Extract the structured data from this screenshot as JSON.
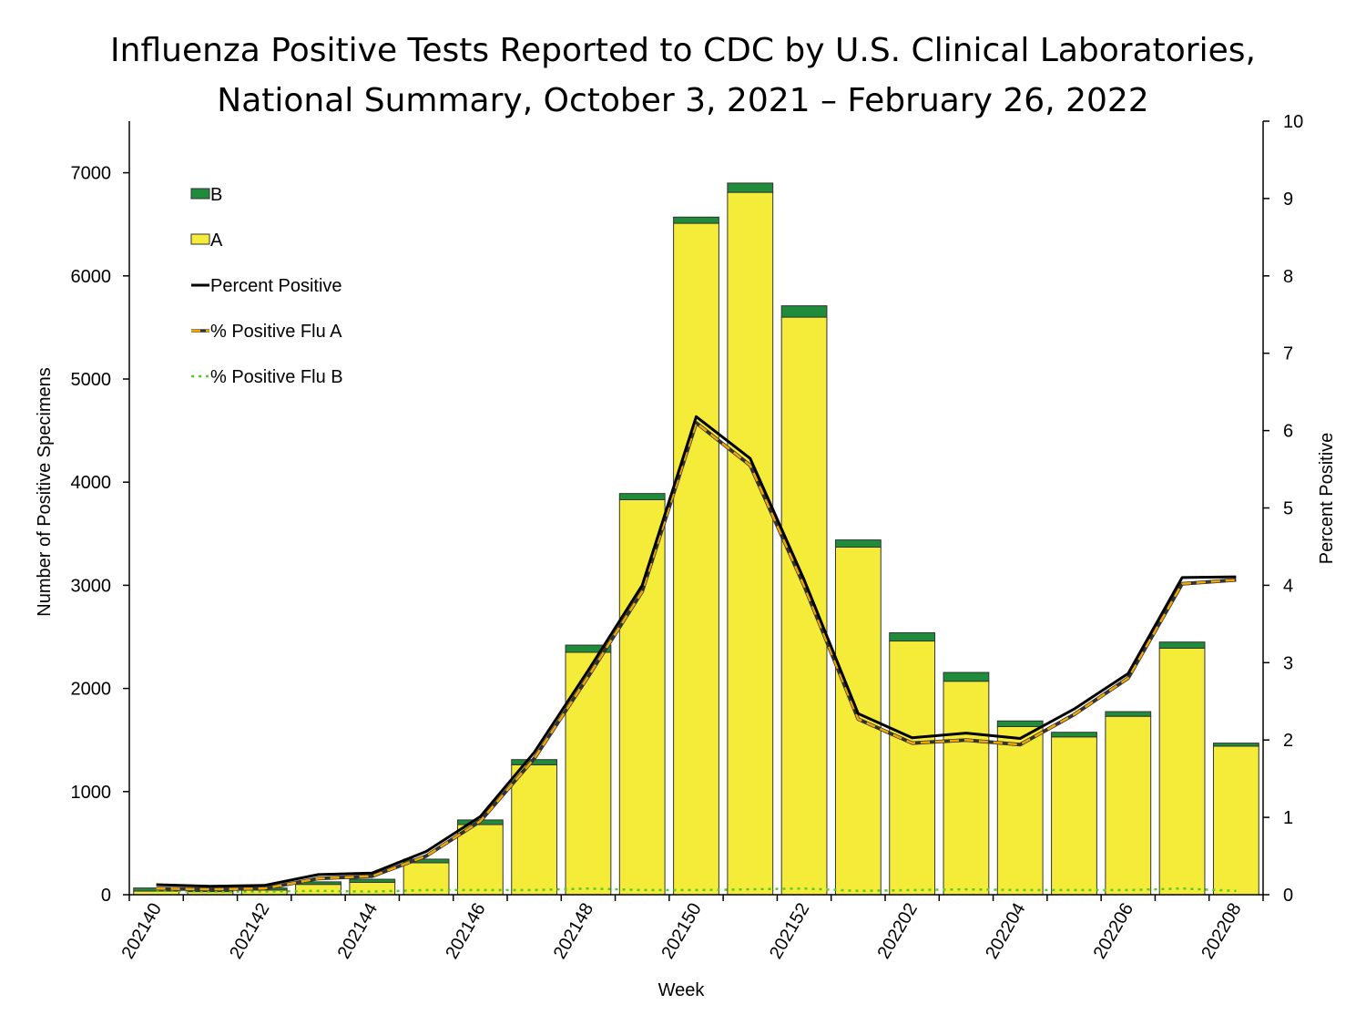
{
  "chart_data": {
    "type": "bar",
    "title_line1": "Influenza Positive Tests Reported to CDC by U.S. Clinical Laboratories,",
    "title_line2": "National Summary, October 3, 2021 – February 26, 2022",
    "xlabel": "Week",
    "ylabel": "Number of Positive Specimens",
    "y2label": "Percent Positive",
    "ylim": [
      0,
      7500
    ],
    "y2lim": [
      0,
      10
    ],
    "yticks": [
      0,
      1000,
      2000,
      3000,
      4000,
      5000,
      6000,
      7000
    ],
    "y2ticks": [
      0,
      1,
      2,
      3,
      4,
      5,
      6,
      7,
      8,
      9,
      10
    ],
    "weeks": [
      "202140",
      "202141",
      "202142",
      "202143",
      "202144",
      "202145",
      "202146",
      "202147",
      "202148",
      "202149",
      "202150",
      "202151",
      "202152",
      "202201",
      "202202",
      "202203",
      "202204",
      "202205",
      "202206",
      "202207",
      "202208"
    ],
    "xtick_labels": [
      "202140",
      "202142",
      "202144",
      "202146",
      "202148",
      "202150",
      "202152",
      "202202",
      "202204",
      "202206",
      "202208"
    ],
    "stack_series": [
      {
        "name": "A",
        "color": "#f5ec3a",
        "values": [
          35,
          30,
          45,
          100,
          120,
          310,
          680,
          1260,
          2350,
          3830,
          6510,
          6810,
          5600,
          3370,
          2460,
          2070,
          1630,
          1530,
          1730,
          2390,
          1440
        ]
      },
      {
        "name": "B",
        "color": "#1e8c3a",
        "values": [
          30,
          20,
          20,
          25,
          30,
          35,
          45,
          50,
          70,
          60,
          60,
          90,
          110,
          70,
          80,
          85,
          55,
          45,
          45,
          60,
          30
        ]
      }
    ],
    "line_series": [
      {
        "name": "Percent Positive",
        "color": "#000000",
        "style": "solid",
        "values": [
          0.13,
          0.11,
          0.12,
          0.26,
          0.28,
          0.56,
          1.01,
          1.84,
          2.9,
          4.0,
          6.18,
          5.64,
          4.07,
          2.34,
          2.03,
          2.09,
          2.02,
          2.4,
          2.86,
          4.1,
          4.11
        ]
      },
      {
        "name": "% Positive Flu A",
        "color": "#f0a800",
        "style": "dashed",
        "values": [
          0.08,
          0.07,
          0.08,
          0.21,
          0.24,
          0.5,
          0.95,
          1.76,
          2.82,
          3.92,
          6.1,
          5.55,
          3.99,
          2.27,
          1.96,
          2.0,
          1.94,
          2.33,
          2.8,
          4.02,
          4.07
        ]
      },
      {
        "name": "% Positive Flu B",
        "color": "#55cc22",
        "style": "dotted",
        "values": [
          0.05,
          0.04,
          0.04,
          0.05,
          0.04,
          0.06,
          0.06,
          0.06,
          0.08,
          0.06,
          0.06,
          0.07,
          0.08,
          0.05,
          0.06,
          0.07,
          0.06,
          0.06,
          0.06,
          0.08,
          0.05
        ]
      }
    ],
    "legend": [
      {
        "label": "B",
        "kind": "box",
        "color": "#1e8c3a"
      },
      {
        "label": "A",
        "kind": "box",
        "color": "#f5ec3a"
      },
      {
        "label": "Percent Positive",
        "kind": "line",
        "color": "#000000",
        "style": "solid"
      },
      {
        "label": "% Positive Flu A",
        "kind": "line",
        "color": "#f0a800",
        "style": "dashed"
      },
      {
        "label": "% Positive Flu B",
        "kind": "line",
        "color": "#55cc22",
        "style": "dotted"
      }
    ],
    "legend_position": "top-left"
  }
}
